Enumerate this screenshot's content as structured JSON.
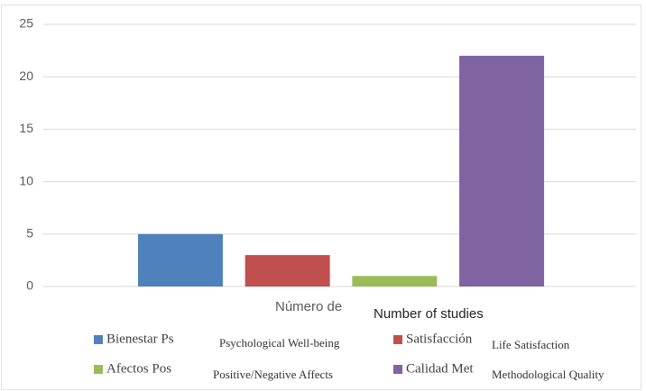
{
  "chart_data": {
    "type": "bar",
    "categories": [
      "Número de"
    ],
    "category_translation": "Number of studies",
    "series": [
      {
        "name": "Bienestar Ps",
        "translation": "Psychological Well-being",
        "color": "#4f81bd",
        "values": [
          5
        ]
      },
      {
        "name": "Satisfacción",
        "translation": "Life Satisfaction",
        "color": "#c0504d",
        "values": [
          3
        ]
      },
      {
        "name": "Afectos Pos",
        "translation": "Positive/Negative Affects",
        "color": "#9bbb59",
        "values": [
          1
        ]
      },
      {
        "name": "Calidad Met",
        "translation": "Methodological Quality",
        "color": "#8064a2",
        "values": [
          22
        ]
      }
    ],
    "ylim": [
      0,
      25
    ],
    "yticks": [
      0,
      5,
      10,
      15,
      20,
      25
    ],
    "grid": true,
    "legend": "bottom"
  }
}
